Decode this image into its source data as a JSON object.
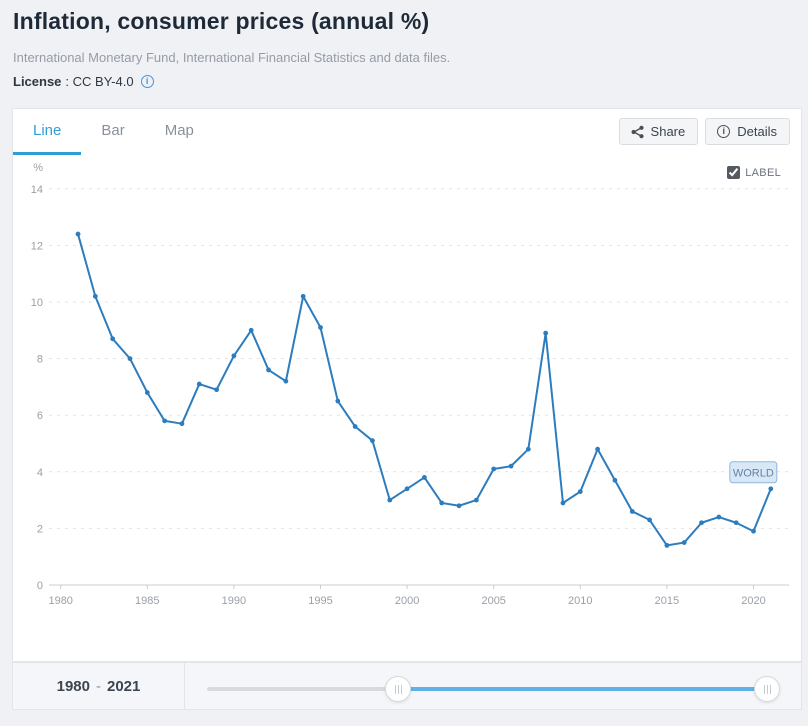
{
  "header": {
    "title": "Inflation, consumer prices (annual %)",
    "source": "International Monetary Fund, International Financial Statistics and data files.",
    "license_label": "License",
    "license_value": ": CC BY-4.0"
  },
  "tabs": [
    {
      "label": "Line",
      "active": true
    },
    {
      "label": "Bar",
      "active": false
    },
    {
      "label": "Map",
      "active": false
    }
  ],
  "toolbar": {
    "share_label": "Share",
    "details_label": "Details"
  },
  "icons": {
    "share": "share-icon",
    "details": "info-icon",
    "license": "info-icon",
    "slider_handle": "grip-handle-icon"
  },
  "chart": {
    "label_checkbox": "LABEL",
    "label_checked": true,
    "series_label": "WORLD"
  },
  "chart_data": {
    "type": "line",
    "title": "Inflation, consumer prices (annual %)",
    "series_name": "WORLD",
    "x": [
      1981,
      1982,
      1983,
      1984,
      1985,
      1986,
      1987,
      1988,
      1989,
      1990,
      1991,
      1992,
      1993,
      1994,
      1995,
      1996,
      1997,
      1998,
      1999,
      2000,
      2001,
      2002,
      2003,
      2004,
      2005,
      2006,
      2007,
      2008,
      2009,
      2010,
      2011,
      2012,
      2013,
      2014,
      2015,
      2016,
      2017,
      2018,
      2019,
      2020,
      2021
    ],
    "values": [
      12.4,
      10.2,
      8.7,
      8.0,
      6.8,
      5.8,
      5.7,
      7.1,
      6.9,
      8.1,
      9.0,
      7.6,
      7.2,
      10.2,
      9.1,
      6.5,
      5.6,
      5.1,
      3.0,
      3.4,
      3.8,
      2.9,
      2.8,
      3.0,
      4.1,
      4.2,
      4.8,
      8.9,
      2.9,
      3.3,
      4.8,
      3.7,
      2.6,
      2.3,
      1.4,
      1.5,
      2.2,
      2.4,
      2.2,
      1.9,
      3.4
    ],
    "xlabel": "",
    "ylabel": "%",
    "ylim": [
      0,
      14
    ],
    "xlim": [
      1980,
      2021
    ],
    "yticks": [
      0,
      2,
      4,
      6,
      8,
      10,
      12,
      14
    ],
    "xticks": [
      1980,
      1985,
      1990,
      1995,
      2000,
      2005,
      2010,
      2015,
      2020
    ],
    "grid": "dashed-horizontal",
    "legend_position": "end-of-line-label",
    "line_color": "#2d7cbd",
    "label_box_fill": "#d9e8f7",
    "label_box_border": "#8fb8dc",
    "accent_color": "#2e9fd6"
  },
  "slider": {
    "start": "1980",
    "sep": "-",
    "end": "2021"
  }
}
